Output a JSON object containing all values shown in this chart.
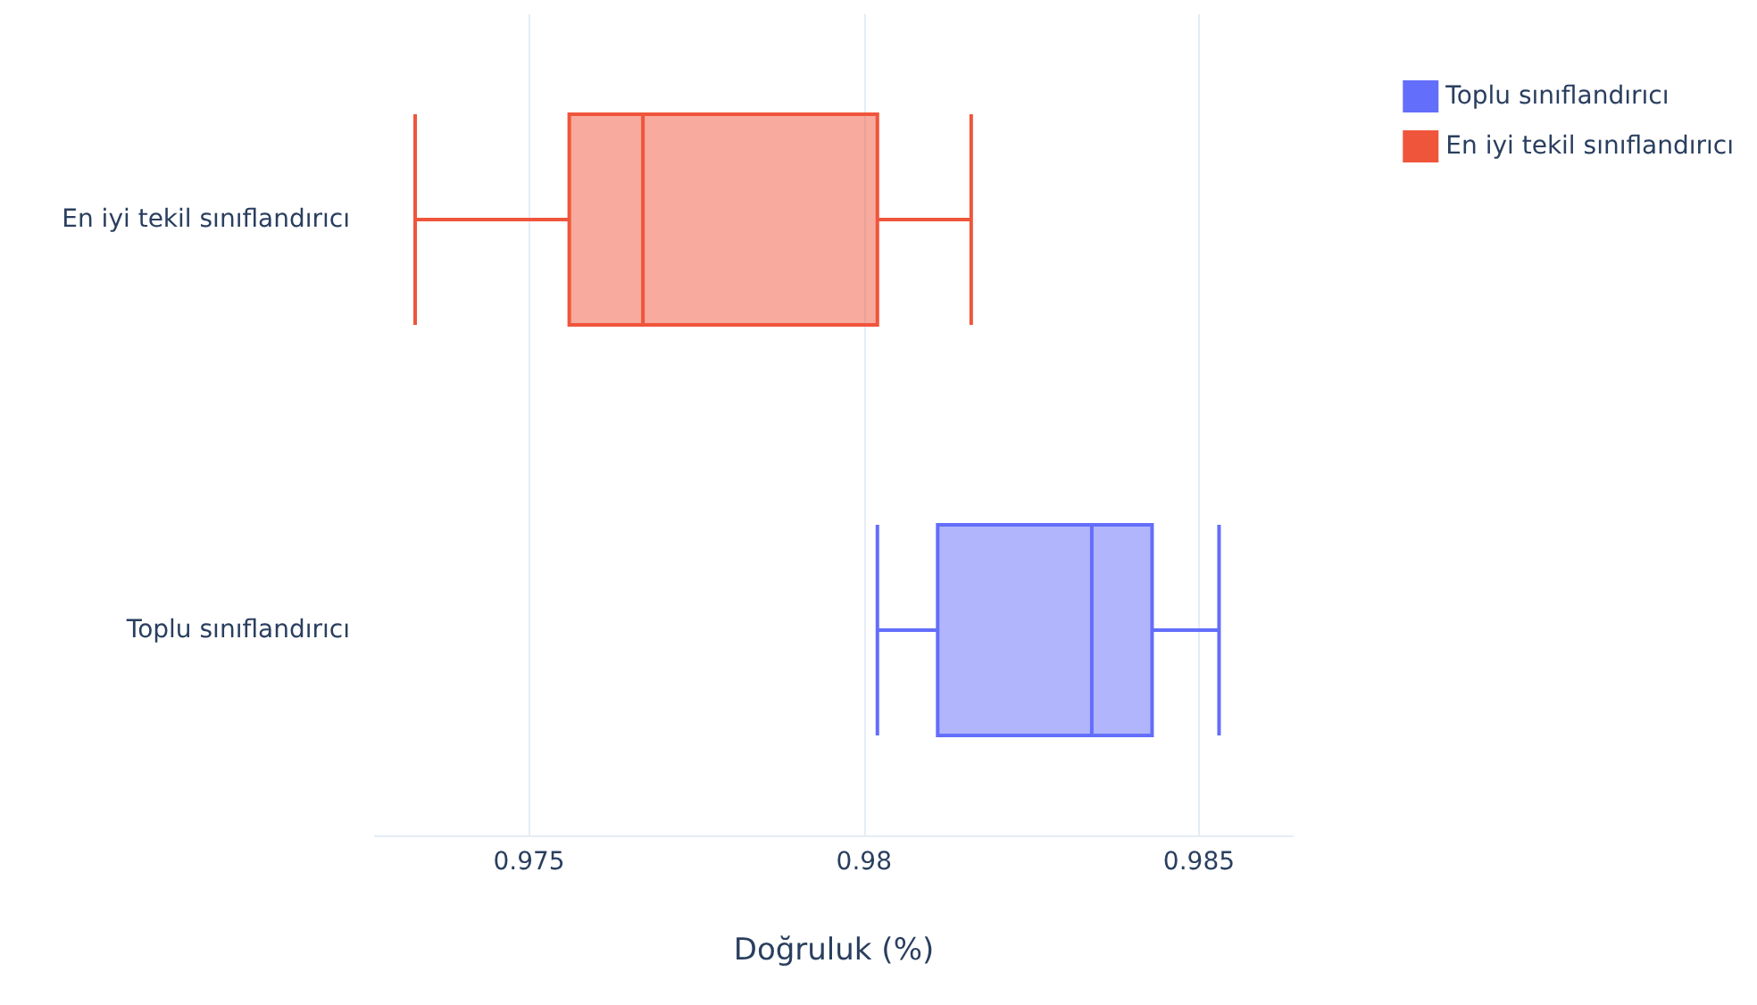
{
  "chart_data": {
    "type": "box",
    "orientation": "horizontal",
    "xlabel": "Doğruluk (%)",
    "categories": [
      "En iyi tekil sınıflandırıcı",
      "Toplu sınıflandırıcı"
    ],
    "series": [
      {
        "name": "Toplu sınıflandırıcı",
        "color": "#636efa",
        "boxes": [
          null,
          {
            "low": 0.9802,
            "q1": 0.9811,
            "median": 0.9834,
            "q3": 0.9843,
            "high": 0.9853
          }
        ]
      },
      {
        "name": "En iyi tekil sınıflandırıcı",
        "color": "#ef553b",
        "boxes": [
          {
            "low": 0.9733,
            "q1": 0.9756,
            "median": 0.9767,
            "q3": 0.9802,
            "high": 0.9816
          },
          null
        ]
      }
    ],
    "xlim": [
      0.9727,
      0.9864
    ],
    "xticks": [
      0.975,
      0.98,
      0.985
    ],
    "grid": "x",
    "legend": "top right"
  }
}
